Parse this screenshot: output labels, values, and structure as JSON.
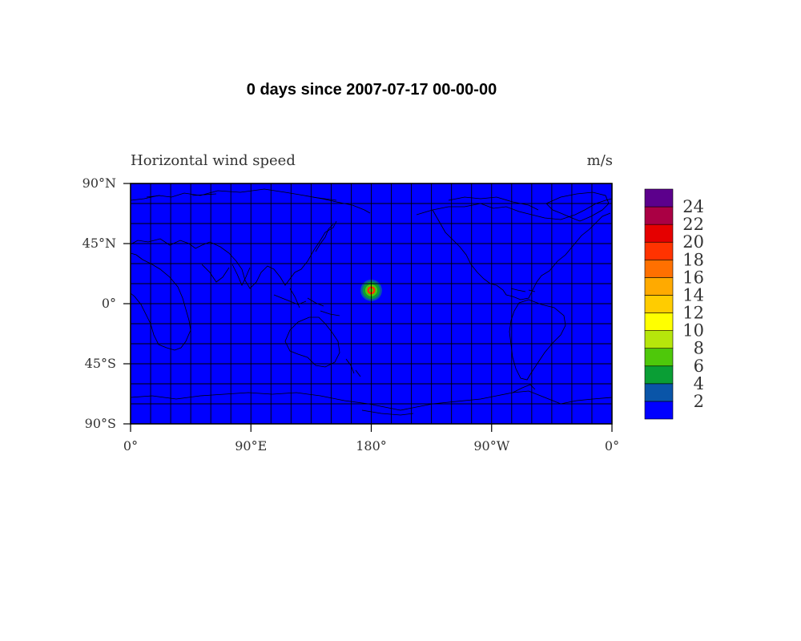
{
  "figure": {
    "title": "0 days since 2007-07-17 00-00-00",
    "left_string": "Horizontal wind speed",
    "right_string": "m/s"
  },
  "map": {
    "projection": "cylindrical-equidistant",
    "lon_range": [
      0,
      360
    ],
    "lat_range": [
      -90,
      90
    ],
    "grid_spacing_deg": 15,
    "background_value_class": "0-2",
    "x_ticks": [
      {
        "lon": 0,
        "label": "0°"
      },
      {
        "lon": 90,
        "label": "90°E"
      },
      {
        "lon": 180,
        "label": "180°"
      },
      {
        "lon": 270,
        "label": "90°W"
      },
      {
        "lon": 360,
        "label": "0°"
      }
    ],
    "y_ticks": [
      {
        "lat": 90,
        "label": "90°N"
      },
      {
        "lat": 45,
        "label": "45°N"
      },
      {
        "lat": 0,
        "label": "0°"
      },
      {
        "lat": -45,
        "label": "45°S"
      },
      {
        "lat": -90,
        "label": "90°S"
      }
    ],
    "vortex": {
      "center_lon": 180,
      "center_lat": 10,
      "rings": [
        {
          "radius_deg": 8,
          "value_class": "2-4"
        },
        {
          "radius_deg": 6.5,
          "value_class": "4-6"
        },
        {
          "radius_deg": 4.5,
          "value_class": "6-8"
        },
        {
          "radius_deg": 3,
          "value_class": "18-20"
        },
        {
          "radius_deg": 1.5,
          "value_class": "6-8"
        }
      ]
    }
  },
  "colorbar": {
    "colors": [
      "#0000ff",
      "#0a55a8",
      "#0a9e35",
      "#4ec80a",
      "#b6e60b",
      "#ffff00",
      "#ffcc00",
      "#ffaa00",
      "#ff7000",
      "#ff3300",
      "#e50000",
      "#aa0044",
      "#5c008c"
    ],
    "labels": [
      "2",
      "4",
      "6",
      "8",
      "10",
      "12",
      "14",
      "16",
      "18",
      "20",
      "22",
      "24"
    ]
  }
}
